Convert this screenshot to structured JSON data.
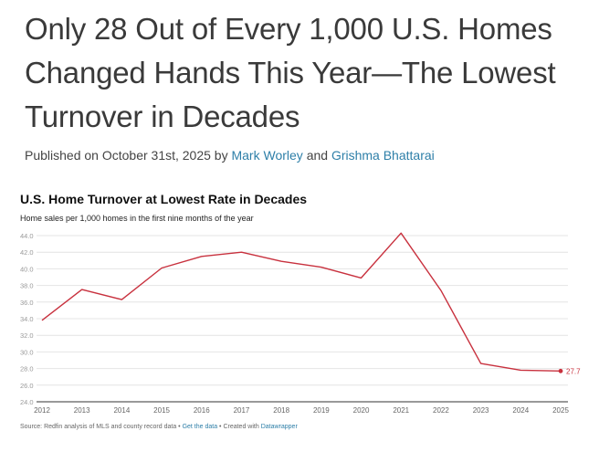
{
  "article": {
    "headline": "Only 28 Out of Every 1,000 U.S. Homes Changed Hands This Year—The Lowest Turnover in Decades",
    "published_prefix": "Published on October 31st, 2025 by",
    "author_1": "Mark Worley",
    "and": "and",
    "author_2": "Grishma Bhattarai"
  },
  "chart_data": {
    "type": "line",
    "title": "U.S. Home Turnover at Lowest Rate in Decades",
    "subtitle": "Home sales per 1,000 homes in the first nine months of the year",
    "x": [
      2012,
      2013,
      2014,
      2015,
      2016,
      2017,
      2018,
      2019,
      2020,
      2021,
      2022,
      2023,
      2024,
      2025
    ],
    "series": [
      {
        "values": [
          33.8,
          37.5,
          36.3,
          40.1,
          41.5,
          42.0,
          40.9,
          40.2,
          38.9,
          44.3,
          37.4,
          28.6,
          27.8,
          27.7
        ]
      }
    ],
    "end_label": "27.7",
    "ylim": [
      24.0,
      44.0
    ],
    "y_ticks": [
      "24.0",
      "26.0",
      "28.0",
      "30.0",
      "32.0",
      "34.0",
      "36.0",
      "38.0",
      "40.0",
      "42.0",
      "44.0"
    ],
    "x_ticks": [
      "2012",
      "2013",
      "2014",
      "2015",
      "2016",
      "2017",
      "2018",
      "2019",
      "2020",
      "2021",
      "2022",
      "2023",
      "2024",
      "2025"
    ],
    "grid": true,
    "colors": {
      "line": "#c8313e",
      "grid": "#e4e4e4",
      "axis": "#333333",
      "tick_text": "#9a9a9a"
    }
  },
  "footer": {
    "source": "Source: Redfin analysis of MLS and county record data •",
    "get_data": "Get the data",
    "created": "• Created with",
    "datawrapper": "Datawrapper"
  }
}
